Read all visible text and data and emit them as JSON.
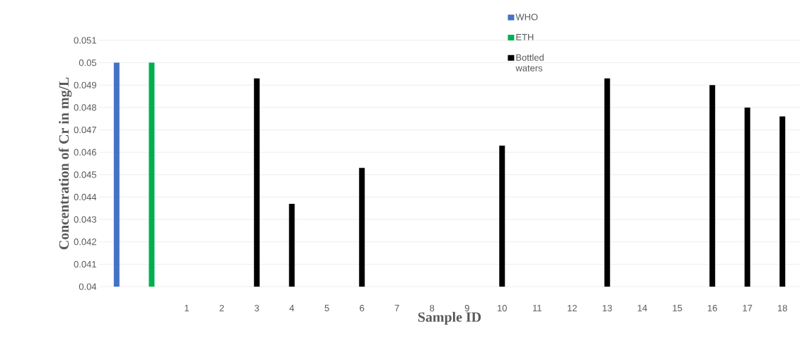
{
  "chart_data": {
    "type": "bar",
    "xlabel": "Sample ID",
    "ylabel": "Concentration of Cr in mg/L",
    "categories": [
      null,
      null,
      "1",
      "2",
      "3",
      "4",
      "5",
      "6",
      "7",
      "8",
      "9",
      "10",
      "11",
      "12",
      "13",
      "14",
      "15",
      "16",
      "17",
      "18"
    ],
    "series": [
      {
        "name": "WHO",
        "color": "#4472c4",
        "values": [
          0.05,
          null,
          null,
          null,
          null,
          null,
          null,
          null,
          null,
          null,
          null,
          null,
          null,
          null,
          null,
          null,
          null,
          null,
          null,
          null
        ]
      },
      {
        "name": "ETH",
        "color": "#00b050",
        "values": [
          null,
          0.05,
          null,
          null,
          null,
          null,
          null,
          null,
          null,
          null,
          null,
          null,
          null,
          null,
          null,
          null,
          null,
          null,
          null,
          null
        ]
      },
      {
        "name": "Bottled waters",
        "color": "#000000",
        "values": [
          null,
          null,
          null,
          null,
          0.0493,
          0.0437,
          null,
          0.0453,
          null,
          null,
          null,
          0.0463,
          null,
          null,
          0.0493,
          null,
          null,
          0.049,
          0.048,
          0.0476
        ]
      }
    ],
    "ylim": [
      0.04,
      0.051
    ],
    "yticks": [
      0.04,
      0.041,
      0.042,
      0.043,
      0.044,
      0.045,
      0.046,
      0.047,
      0.048,
      0.049,
      0.05,
      0.051
    ],
    "grid": "y",
    "legend": "top"
  }
}
